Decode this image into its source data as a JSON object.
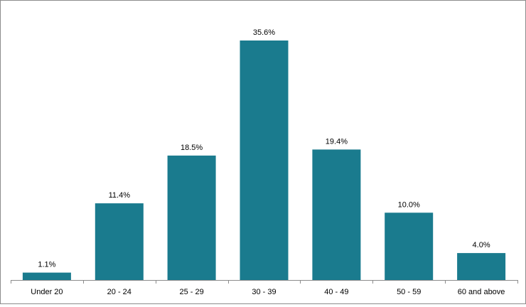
{
  "chart_data": {
    "type": "bar",
    "categories": [
      "Under 20",
      "20 - 24",
      "25 - 29",
      "30 - 39",
      "40 - 49",
      "50 - 59",
      "60 and above"
    ],
    "values": [
      1.1,
      11.4,
      18.5,
      35.6,
      19.4,
      10.0,
      4.0
    ],
    "value_labels": [
      "1.1%",
      "11.4%",
      "18.5%",
      "35.6%",
      "19.4%",
      "10.0%",
      "4.0%"
    ],
    "ylim": [
      0,
      35.6
    ],
    "grid": false,
    "legend": "none",
    "bar_color": "#1a7b8e"
  }
}
